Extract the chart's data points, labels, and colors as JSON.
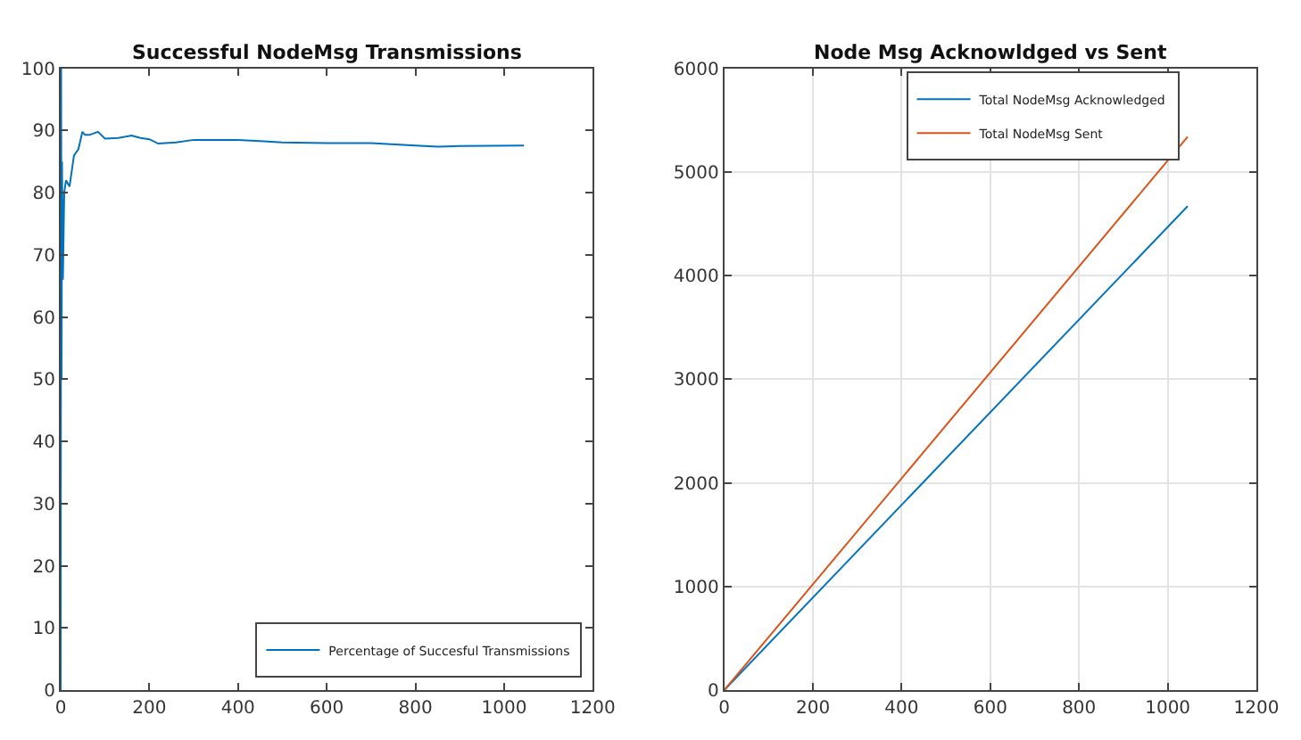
{
  "chart_data": [
    {
      "type": "line",
      "title": "Successful NodeMsg Transmissions",
      "series": [
        {
          "name": "Percentage of Succesful Transmissions",
          "color": "#0072bd",
          "x": [
            0,
            1,
            2,
            3,
            5,
            8,
            12,
            20,
            30,
            40,
            49,
            55,
            65,
            84,
            100,
            130,
            160,
            180,
            200,
            220,
            260,
            300,
            400,
            450,
            500,
            600,
            700,
            800,
            850,
            900,
            1045
          ],
          "values": [
            0,
            100,
            50,
            85,
            66,
            80,
            82,
            81,
            86,
            87,
            89.8,
            89.3,
            89.3,
            89.8,
            88.7,
            88.8,
            89.2,
            88.8,
            88.6,
            87.9,
            88.1,
            88.5,
            88.5,
            88.3,
            88.1,
            88.0,
            88.0,
            87.6,
            87.4,
            87.5,
            87.6
          ]
        }
      ],
      "xlim": [
        0,
        1200
      ],
      "xticks": [
        0,
        200,
        400,
        600,
        800,
        1000,
        1200
      ],
      "ylim": [
        0,
        100
      ],
      "yticks": [
        0,
        10,
        20,
        30,
        40,
        50,
        60,
        70,
        80,
        90,
        100
      ],
      "grid": false,
      "legend": "bottom right"
    },
    {
      "type": "line",
      "title": "Node Msg Acknowldged vs Sent",
      "x": [
        0,
        1045
      ],
      "series": [
        {
          "name": "Total NodeMsg Acknowledged",
          "color": "#0072bd",
          "values": [
            0,
            4670
          ]
        },
        {
          "name": "Total NodeMsg Sent",
          "color": "#d95319",
          "values": [
            0,
            5340
          ]
        }
      ],
      "xlim": [
        0,
        1200
      ],
      "xticks": [
        0,
        200,
        400,
        600,
        800,
        1000,
        1200
      ],
      "ylim": [
        0,
        6000
      ],
      "yticks": [
        0,
        1000,
        2000,
        3000,
        4000,
        5000,
        6000
      ],
      "grid": true,
      "legend": "top right"
    }
  ]
}
